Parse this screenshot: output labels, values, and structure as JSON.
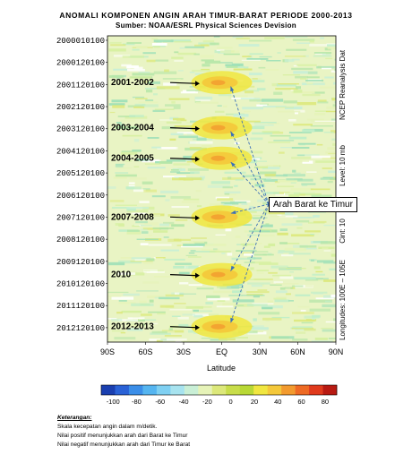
{
  "chart_data": {
    "type": "heatmap",
    "title": "ANOMALI KOMPONEN ANGIN ARAH TIMUR-BARAT PERIODE 2000-2013",
    "subtitle": "Sumber: NOAA/ESRL Physical Sciences Devision",
    "xlabel": "Latitude",
    "x_ticks": [
      "90S",
      "60S",
      "30S",
      "EQ",
      "30N",
      "60N",
      "90N"
    ],
    "xlim": [
      -90,
      90
    ],
    "y_ticks": [
      "2000010100",
      "2000120100",
      "2001120100",
      "2002120100",
      "2003120100",
      "2004120100",
      "2005120100",
      "2006120100",
      "2007120100",
      "2008120100",
      "2009120100",
      "2010120100",
      "2011120100",
      "2012120100"
    ],
    "right_labels": [
      "NCEP Reanalysis Dat",
      "Level: 10 mb",
      "Cint: 10",
      "Longitudes: 100E – 105E"
    ],
    "colorbar_ticks": [
      -100,
      -80,
      -60,
      -40,
      -20,
      0,
      20,
      40,
      60,
      80
    ],
    "colorbar_colors": [
      "#1a3fb0",
      "#2a62d6",
      "#3b8ee8",
      "#55b5f0",
      "#7fd0f2",
      "#a7e3ef",
      "#c9efd6",
      "#e6f3b8",
      "#dce87a",
      "#c8dd4a",
      "#b8d835",
      "#f0e640",
      "#f4c83a",
      "#f29a2e",
      "#ee6a24",
      "#e03a1c",
      "#b81a12"
    ],
    "anomaly_events": [
      {
        "label": "2001-2002",
        "year": 2001.95
      },
      {
        "label": "2003-2004",
        "year": 2003.95
      },
      {
        "label": "2004-2005",
        "year": 2005.3
      },
      {
        "label": "2007-2008",
        "year": 2007.9
      },
      {
        "label": "2010",
        "year": 2010.45
      },
      {
        "label": "2012-2013",
        "year": 2012.75
      }
    ],
    "callout": "Arah Barat ke Timur"
  },
  "notes": {
    "heading": "Keterangan:",
    "lines": [
      "Skala kecepatan angin dalam m/detik.",
      "Nilai positif menunjukkan arah dari Barat ke Timur",
      "Nilai negatif menunjukkan arah dari Timur ke Barat"
    ]
  }
}
